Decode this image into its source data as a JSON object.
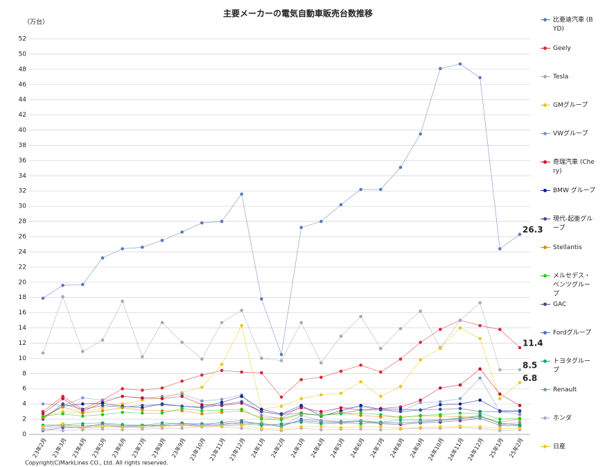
{
  "chart_data": {
    "type": "line",
    "title": "主要メーカーの電気自動車販売台数推移",
    "y_label": "（万台）",
    "footer": "Copyright(C)MarkLines CO., Ltd. All rights reserved.",
    "categories": [
      "23年2月",
      "23年3月",
      "23年4月",
      "23年5月",
      "23年6月",
      "23年7月",
      "23年8月",
      "23年9月",
      "23年10月",
      "23年11月",
      "23年12月",
      "24年1月",
      "24年2月",
      "24年3月",
      "24年4月",
      "24年5月",
      "24年6月",
      "24年7月",
      "24年8月",
      "24年9月",
      "24年10月",
      "24年11月",
      "24年12月",
      "25年1月",
      "25年2月"
    ],
    "ylim": [
      0,
      52
    ],
    "yticks": [
      0,
      2,
      4,
      6,
      8,
      10,
      12,
      14,
      16,
      18,
      20,
      22,
      24,
      26,
      28,
      30,
      32,
      34,
      36,
      38,
      40,
      42,
      44,
      46,
      48,
      50,
      52
    ],
    "grid": true,
    "series": [
      {
        "name": "比亜迪汽車 (BYD)",
        "color": "#5b79b8",
        "end_label": true,
        "values": [
          17.9,
          19.6,
          19.7,
          23.2,
          24.4,
          24.6,
          25.5,
          26.6,
          27.8,
          28.0,
          31.6,
          17.8,
          10.5,
          27.2,
          28.0,
          30.2,
          32.2,
          32.2,
          35.1,
          39.5,
          48.1,
          48.7,
          46.9,
          24.4,
          26.3
        ]
      },
      {
        "name": "Geely",
        "color": "#d42b3a",
        "end_label": true,
        "values": [
          3.0,
          5.0,
          3.3,
          4.5,
          6.0,
          5.8,
          6.1,
          7.0,
          7.8,
          8.4,
          8.2,
          8.1,
          4.9,
          7.2,
          7.5,
          8.3,
          9.1,
          8.2,
          9.9,
          12.1,
          13.8,
          15.0,
          14.3,
          13.8,
          11.4
        ]
      },
      {
        "name": "Tesla",
        "color": "#a0aab8",
        "end_label": true,
        "values": [
          10.7,
          18.1,
          10.9,
          12.4,
          17.5,
          10.2,
          14.7,
          12.1,
          9.9,
          14.7,
          16.3,
          10.0,
          9.7,
          14.7,
          9.4,
          12.9,
          15.5,
          11.3,
          13.9,
          16.2,
          11.4,
          15.0,
          17.3,
          8.5,
          8.5
        ]
      },
      {
        "name": "GMグループ",
        "color": "#e8c81c",
        "end_label": true,
        "values": [
          2.3,
          3.0,
          2.8,
          3.5,
          4.0,
          4.5,
          4.8,
          5.5,
          6.2,
          9.2,
          14.3,
          3.3,
          3.7,
          4.7,
          5.2,
          5.4,
          6.9,
          5.0,
          6.3,
          9.8,
          11.3,
          14.0,
          12.6,
          4.7,
          6.8
        ]
      },
      {
        "name": "VWグループ",
        "color": "#8095d0",
        "values": [
          4.0,
          3.8,
          4.8,
          4.5,
          5.0,
          4.7,
          5.0,
          5.3,
          4.4,
          4.6,
          5.2,
          2.5,
          2.1,
          3.7,
          2.7,
          3.5,
          3.6,
          3.3,
          3.0,
          4.2,
          4.3,
          4.7,
          7.4,
          3.0,
          2.6
        ]
      },
      {
        "name": "奇瑞汽車 (Chery)",
        "color": "#c8102e",
        "values": [
          2.7,
          4.7,
          3.0,
          4.2,
          5.0,
          4.8,
          4.7,
          5.0,
          3.9,
          3.8,
          4.1,
          3.0,
          2.6,
          3.5,
          3.0,
          3.5,
          3.2,
          3.4,
          3.6,
          4.5,
          6.1,
          6.5,
          8.6,
          5.3,
          3.8
        ]
      },
      {
        "name": "BMW グループ",
        "color": "#0a1f8f",
        "values": [
          2.3,
          3.7,
          4.0,
          4.1,
          3.7,
          3.5,
          4.0,
          3.7,
          3.6,
          4.2,
          5.0,
          3.3,
          2.7,
          3.8,
          2.4,
          3.1,
          3.8,
          3.3,
          3.3,
          3.2,
          3.9,
          4.0,
          4.5,
          3.1,
          3.1
        ]
      },
      {
        "name": "現代-起亜グループ",
        "color": "#3b4a9b",
        "values": [
          2.0,
          4.0,
          3.3,
          3.8,
          3.6,
          3.8,
          3.9,
          3.7,
          3.5,
          3.9,
          4.3,
          3.0,
          2.6,
          2.8,
          2.5,
          2.8,
          3.2,
          3.2,
          3.0,
          3.2,
          3.3,
          3.4,
          3.0,
          3.0,
          3.0
        ]
      },
      {
        "name": "Stellantis",
        "color": "#d98a00",
        "values": [
          2.2,
          3.6,
          2.8,
          3.1,
          3.5,
          3.2,
          3.1,
          3.1,
          2.7,
          2.9,
          3.1,
          2.2,
          2.1,
          2.7,
          2.5,
          2.8,
          2.5,
          2.3,
          2.3,
          2.4,
          2.4,
          2.3,
          2.4,
          1.6,
          2.0
        ]
      },
      {
        "name": "メルセデス・ベンツグループ",
        "color": "#22cc22",
        "values": [
          2.4,
          2.7,
          2.4,
          2.6,
          2.9,
          2.8,
          2.8,
          3.4,
          3.1,
          3.2,
          3.3,
          2.0,
          1.9,
          2.7,
          2.5,
          2.7,
          2.8,
          2.6,
          2.2,
          2.5,
          2.6,
          2.8,
          2.8,
          2.0,
          2.1
        ]
      },
      {
        "name": "GAC",
        "color": "#5a3d8a",
        "values": [
          0.5,
          0.9,
          0.9,
          1.4,
          1.1,
          1.2,
          1.1,
          1.3,
          1.2,
          1.3,
          1.6,
          1.4,
          1.2,
          1.8,
          1.6,
          1.5,
          1.7,
          1.4,
          1.3,
          1.5,
          1.6,
          1.8,
          2.1,
          1.2,
          1.1
        ]
      },
      {
        "name": "Fordグループ",
        "color": "#5566cc",
        "values": [
          1.0,
          1.2,
          1.1,
          1.2,
          1.0,
          1.1,
          1.3,
          1.5,
          1.2,
          1.6,
          1.8,
          1.3,
          1.0,
          2.0,
          1.8,
          1.7,
          1.8,
          1.6,
          1.5,
          1.6,
          1.8,
          2.0,
          2.5,
          1.4,
          1.3
        ]
      },
      {
        "name": "トヨタグループ",
        "color": "#1aa37a",
        "values": [
          1.2,
          1.3,
          1.4,
          1.5,
          1.3,
          1.2,
          1.5,
          1.4,
          1.4,
          1.5,
          1.4,
          1.2,
          1.4,
          1.6,
          1.4,
          1.5,
          1.4,
          1.6,
          1.9,
          1.9,
          1.9,
          2.1,
          2.3,
          1.5,
          1.2
        ]
      },
      {
        "name": "Renault",
        "color": "#7ba08a",
        "values": [
          0.7,
          1.1,
          0.8,
          1.0,
          1.0,
          0.9,
          1.2,
          1.2,
          1.0,
          1.2,
          1.3,
          1.5,
          1.0,
          2.5,
          1.8,
          1.6,
          1.8,
          1.5,
          1.5,
          1.7,
          1.9,
          2.2,
          2.1,
          1.2,
          1.6
        ]
      },
      {
        "name": "ホンダ",
        "color": "#b8a8c8",
        "values": [
          0.6,
          0.5,
          0.6,
          0.7,
          0.6,
          0.7,
          0.8,
          0.8,
          1.0,
          1.0,
          0.8,
          0.6,
          0.5,
          0.8,
          0.6,
          0.7,
          0.7,
          0.6,
          0.7,
          0.8,
          0.8,
          0.9,
          0.8,
          0.5,
          0.6
        ]
      },
      {
        "name": "日産",
        "color": "#f5c518",
        "values": [
          1.0,
          1.4,
          0.9,
          1.1,
          0.9,
          1.0,
          1.0,
          1.2,
          1.1,
          1.1,
          1.2,
          0.8,
          0.7,
          1.0,
          1.0,
          0.9,
          1.0,
          1.0,
          0.8,
          0.9,
          1.0,
          1.1,
          1.0,
          0.8,
          0.8
        ]
      }
    ]
  }
}
